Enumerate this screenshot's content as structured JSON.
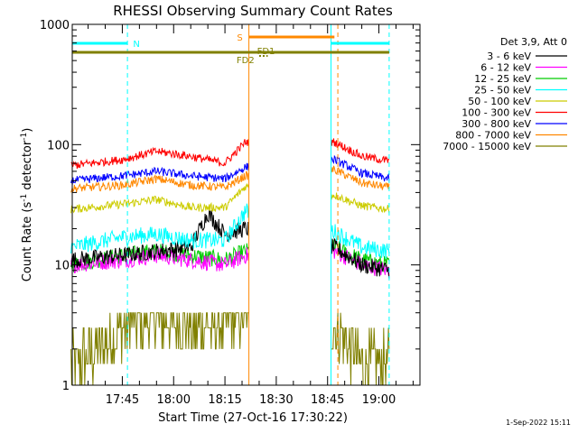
{
  "chart_data": {
    "type": "line",
    "title": "RHESSI Observing Summary Count Rates",
    "xlabel": "Start Time (27-Oct-16 17:30:22)",
    "ylabel_main": "Count Rate (s",
    "ylabel_sup1": "-1",
    "ylabel_mid": " detector",
    "ylabel_sup2": "-1",
    "ylabel_end": ")",
    "yscale": "log",
    "ylim": [
      1,
      1000
    ],
    "xlim": [
      "17:30:22",
      "19:12:00"
    ],
    "x_ticks": [
      "17:45",
      "18:00",
      "18:15",
      "18:30",
      "18:45",
      "19:00"
    ],
    "y_ticks": [
      "1",
      "10",
      "100",
      "1000"
    ],
    "legend_title": "Det 3,9, Att 0",
    "legend_position": "right",
    "date_stamp": "1-Sep-2022 15:11",
    "data_gap": [
      "18:22:00",
      "18:46:00"
    ],
    "series": [
      {
        "name": "3 - 6 keV",
        "color": "#000000",
        "x": [
          "17:30",
          "17:45",
          "17:55",
          "18:05",
          "18:10",
          "18:15",
          "18:21",
          "18:47",
          "18:55",
          "19:03"
        ],
        "values": [
          11,
          12,
          13,
          14,
          27,
          18,
          20,
          14,
          10,
          9
        ]
      },
      {
        "name": "6 - 12 keV",
        "color": "#ff00ff",
        "x": [
          "17:30",
          "17:45",
          "17:55",
          "18:05",
          "18:15",
          "18:21",
          "18:47",
          "18:55",
          "19:03"
        ],
        "values": [
          10,
          11,
          12,
          11,
          10,
          12,
          13,
          10,
          9
        ]
      },
      {
        "name": "12 - 25 keV",
        "color": "#00cc00",
        "x": [
          "17:30",
          "17:45",
          "17:55",
          "18:05",
          "18:15",
          "18:21",
          "18:47",
          "18:55",
          "19:03"
        ],
        "values": [
          10,
          12,
          13,
          12,
          11,
          13,
          14,
          11,
          10
        ]
      },
      {
        "name": "25 - 50 keV",
        "color": "#00ffff",
        "x": [
          "17:30",
          "17:45",
          "17:55",
          "18:05",
          "18:15",
          "18:21",
          "18:47",
          "18:55",
          "19:03"
        ],
        "values": [
          14,
          17,
          18,
          16,
          16,
          28,
          19,
          14,
          13
        ]
      },
      {
        "name": "50 - 100 keV",
        "color": "#cccc00",
        "x": [
          "17:30",
          "17:45",
          "17:55",
          "18:05",
          "18:15",
          "18:21",
          "18:47",
          "18:55",
          "19:03"
        ],
        "values": [
          29,
          32,
          35,
          30,
          30,
          45,
          38,
          31,
          29
        ]
      },
      {
        "name": "100 - 300 keV",
        "color": "#ff0000",
        "x": [
          "17:30",
          "17:45",
          "17:55",
          "18:05",
          "18:15",
          "18:21",
          "18:47",
          "18:55",
          "19:03"
        ],
        "values": [
          67,
          75,
          88,
          80,
          70,
          105,
          105,
          80,
          73
        ]
      },
      {
        "name": "300 - 800 keV",
        "color": "#0000ff",
        "x": [
          "17:30",
          "17:45",
          "17:55",
          "18:05",
          "18:15",
          "18:21",
          "18:47",
          "18:55",
          "19:03"
        ],
        "values": [
          50,
          55,
          60,
          55,
          52,
          65,
          75,
          58,
          52
        ]
      },
      {
        "name": "800 - 7000 keV",
        "color": "#ff8800",
        "x": [
          "17:30",
          "17:45",
          "17:55",
          "18:05",
          "18:15",
          "18:21",
          "18:47",
          "18:55",
          "19:03"
        ],
        "values": [
          43,
          46,
          52,
          46,
          44,
          55,
          62,
          48,
          44
        ]
      },
      {
        "name": "7000 - 15000 keV",
        "color": "#808000",
        "x": [
          "17:30",
          "17:40",
          "17:45",
          "17:55",
          "18:05",
          "18:15",
          "18:21",
          "18:47",
          "18:55",
          "19:03"
        ],
        "values": [
          1.5,
          2,
          3,
          3.5,
          3,
          3,
          4,
          3,
          1.5,
          1.5
        ]
      }
    ],
    "flag_bars": [
      {
        "label": "N",
        "color": "#00ffff",
        "segments": [
          [
            "17:30:22",
            "17:46:30"
          ],
          [
            "18:46:00",
            "19:03:00"
          ]
        ]
      },
      {
        "label": "S",
        "color": "#ff8800",
        "segments": [
          [
            "18:22:00",
            "18:47:00"
          ]
        ]
      },
      {
        "label": "FD2",
        "color": "#808000",
        "segments": [
          [
            "17:30:22",
            "19:03:00"
          ]
        ]
      },
      {
        "label": "FD1",
        "color": "#808000",
        "segments": [
          [
            "18:25:00",
            "18:27:30"
          ]
        ]
      }
    ],
    "vertical_markers": [
      {
        "x": "17:46:30",
        "color": "#00ffff",
        "style": "dashed"
      },
      {
        "x": "18:22:00",
        "color": "#ff8800",
        "style": "solid"
      },
      {
        "x": "18:46:00",
        "color": "#00ffff",
        "style": "solid"
      },
      {
        "x": "18:48:00",
        "color": "#ff8800",
        "style": "dashed"
      },
      {
        "x": "19:03:00",
        "color": "#00ffff",
        "style": "dashed"
      }
    ]
  }
}
